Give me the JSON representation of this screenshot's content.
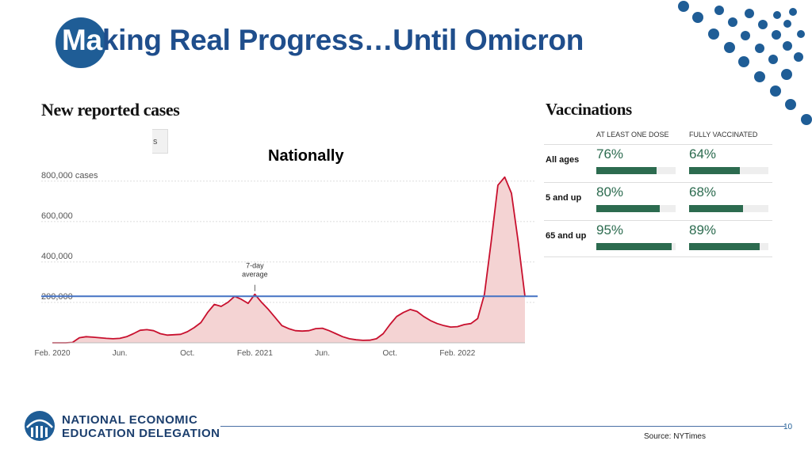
{
  "slide": {
    "title": "Making Real Progress…Until Omicron",
    "title_on_circle": "Ma",
    "title_rest": "king Real Progress…Until Omicron",
    "page_number": "10",
    "source": "Source: NYTimes",
    "colors": {
      "brand_blue": "#1f5d96",
      "title_blue": "#1f4e8c",
      "vacc_green": "#2c6b4f",
      "case_red": "#c8102e"
    }
  },
  "org": {
    "line1": "NATIONAL ECONOMIC",
    "line2": "EDUCATION DELEGATION"
  },
  "cases": {
    "heading": "New reported cases",
    "tab_stub": "s",
    "overlay_label": "Nationally",
    "annotation_line1": "7-day",
    "annotation_line2": "average"
  },
  "vaccinations": {
    "heading": "Vaccinations",
    "col1": "AT LEAST ONE DOSE",
    "col2": "FULLY VACCINATED",
    "rows": [
      {
        "label": "All ages",
        "one_dose": "76%",
        "one_dose_value": 0.76,
        "full": "64%",
        "full_value": 0.64
      },
      {
        "label": "5 and up",
        "one_dose": "80%",
        "one_dose_value": 0.8,
        "full": "68%",
        "full_value": 0.68
      },
      {
        "label": "65 and up",
        "one_dose": "95%",
        "one_dose_value": 0.95,
        "full": "89%",
        "full_value": 0.89
      }
    ]
  },
  "chart_data": {
    "type": "area",
    "title": "New reported cases",
    "series": [
      {
        "values": [
          [
            0,
            0
          ],
          [
            1,
            0
          ],
          [
            2,
            0
          ],
          [
            3,
            2000
          ],
          [
            4,
            25000
          ],
          [
            5,
            30000
          ],
          [
            6,
            28000
          ],
          [
            7,
            25000
          ],
          [
            8,
            22000
          ],
          [
            9,
            20000
          ],
          [
            10,
            22000
          ],
          [
            11,
            30000
          ],
          [
            12,
            45000
          ],
          [
            13,
            62000
          ],
          [
            14,
            65000
          ],
          [
            15,
            60000
          ],
          [
            16,
            45000
          ],
          [
            17,
            38000
          ],
          [
            18,
            40000
          ],
          [
            19,
            42000
          ],
          [
            20,
            55000
          ],
          [
            21,
            75000
          ],
          [
            22,
            100000
          ],
          [
            23,
            150000
          ],
          [
            24,
            190000
          ],
          [
            25,
            180000
          ],
          [
            26,
            200000
          ],
          [
            27,
            230000
          ],
          [
            28,
            215000
          ],
          [
            29,
            195000
          ],
          [
            30,
            240000
          ],
          [
            31,
            200000
          ],
          [
            32,
            165000
          ],
          [
            33,
            125000
          ],
          [
            34,
            85000
          ],
          [
            35,
            70000
          ],
          [
            36,
            60000
          ],
          [
            37,
            58000
          ],
          [
            38,
            60000
          ],
          [
            39,
            70000
          ],
          [
            40,
            72000
          ],
          [
            41,
            60000
          ],
          [
            42,
            45000
          ],
          [
            43,
            30000
          ],
          [
            44,
            20000
          ],
          [
            45,
            15000
          ],
          [
            46,
            12000
          ],
          [
            47,
            13000
          ],
          [
            48,
            20000
          ],
          [
            49,
            45000
          ],
          [
            50,
            90000
          ],
          [
            51,
            130000
          ],
          [
            52,
            150000
          ],
          [
            53,
            165000
          ],
          [
            54,
            155000
          ],
          [
            55,
            130000
          ],
          [
            56,
            110000
          ],
          [
            57,
            95000
          ],
          [
            58,
            85000
          ],
          [
            59,
            78000
          ],
          [
            60,
            80000
          ],
          [
            61,
            90000
          ],
          [
            62,
            95000
          ],
          [
            63,
            120000
          ],
          [
            64,
            240000
          ],
          [
            65,
            500000
          ],
          [
            66,
            780000
          ],
          [
            67,
            820000
          ],
          [
            68,
            740000
          ],
          [
            69,
            500000
          ],
          [
            70,
            230000
          ]
        ]
      }
    ],
    "reference_line": {
      "y": 230000
    },
    "x_tick_labels": [
      "Feb. 2020",
      "Jun.",
      "Oct.",
      "Feb. 2021",
      "Jun.",
      "Oct.",
      "Feb. 2022"
    ],
    "x_tick_positions": [
      0,
      10,
      20,
      30,
      40,
      50,
      60
    ],
    "y_tick_labels": [
      "800,000 cases",
      "600,000",
      "400,000",
      "200,000"
    ],
    "y_tick_values": [
      800000,
      600000,
      400000,
      200000
    ],
    "ylim": [
      0,
      850000
    ],
    "xlim": [
      0,
      70
    ],
    "grid": true
  }
}
